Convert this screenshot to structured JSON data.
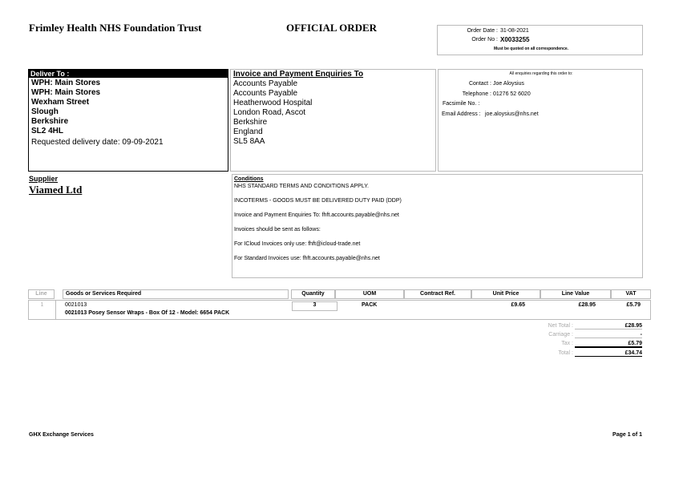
{
  "header": {
    "trust_name": "Frimley Health NHS Foundation Trust",
    "title": "OFFICIAL ORDER",
    "order_date_label": "Order Date :",
    "order_date": "31-08-2021",
    "order_no_label": "Order No :",
    "order_no": "X0033255",
    "quote_note": "Must be quoted on all correspondence."
  },
  "deliver": {
    "title": "Deliver To :",
    "lines": [
      "WPH: Main Stores",
      "WPH: Main Stores",
      "Wexham Street",
      "Slough",
      "Berkshire",
      "SL2 4HL"
    ],
    "requested": "Requested delivery date: 09-09-2021"
  },
  "invoice": {
    "title": "Invoice and Payment Enquiries To",
    "lines": [
      "Accounts Payable",
      "Accounts Payable",
      "Heatherwood Hospital",
      "London Road, Ascot",
      "Berkshire",
      "England",
      "SL5 8AA"
    ]
  },
  "enquiries": {
    "note": "All enquiries regarding this order to:",
    "contact_label": "Contact :",
    "contact": "Joe Aloysius",
    "telephone_label": "Telephone :",
    "telephone": "01276 52 6020",
    "fax_label": "Facsimile No. :",
    "email_label": "Email Address :",
    "email": "joe.aloysius@nhs.net"
  },
  "supplier": {
    "label": "Supplier",
    "name": "Viamed Ltd"
  },
  "conditions": {
    "title": "Conditions",
    "lines": [
      "NHS STANDARD TERMS AND CONDITIONS APPLY.",
      "INCOTERMS - GOODS MUST BE DELIVERED DUTY PAID (DDP)",
      "Invoice and Payment Enquiries To: fhft.accounts.payable@nhs.net",
      "Invoices should be sent as follows:",
      "For ICloud Invoices only use: fhft@icloud-trade.net",
      "For Standard Invoices use: fhft.accounts.payable@nhs.net"
    ]
  },
  "table": {
    "headers": [
      "Line",
      "Goods or Services Required",
      "Quantity",
      "UOM",
      "Contract Ref.",
      "Unit Price",
      "Line Value",
      "VAT"
    ],
    "rows": [
      {
        "line": "1",
        "code": "0021013",
        "description": "0021013 Posey Sensor Wraps - Box Of 12 - Model: 6654 PACK",
        "quantity": "3",
        "uom": "PACK",
        "contract_ref": "",
        "unit_price": "£9.65",
        "line_value": "£28.95",
        "vat": "£5.79"
      }
    ]
  },
  "totals": {
    "net_label": "Net Total :",
    "net": "£28.95",
    "carriage_label": "Carriage :",
    "carriage": "-",
    "tax_label": "Tax :",
    "tax": "£5.79",
    "total_label": "Total :",
    "total": "£34.74"
  },
  "footer": {
    "left": "GHX Exchange Services",
    "right": "Page 1 of 1"
  }
}
